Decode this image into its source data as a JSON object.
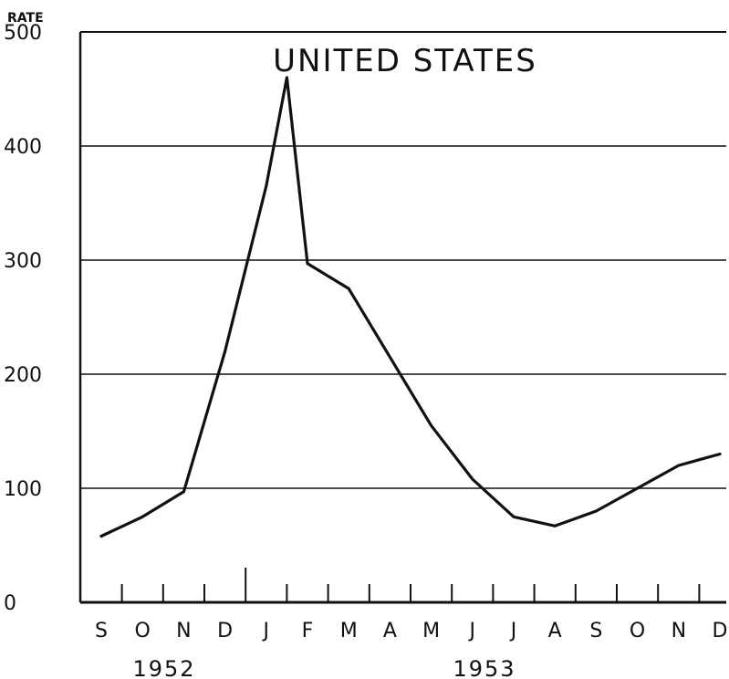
{
  "chart_data": {
    "type": "line",
    "title": "UNITED STATES",
    "ylabel": "RATE",
    "xlabel": "",
    "ylim": [
      0,
      500
    ],
    "yticks": [
      0,
      100,
      200,
      300,
      400,
      500
    ],
    "grid": true,
    "categories": [
      "S",
      "O",
      "N",
      "D",
      "J",
      "F",
      "M",
      "A",
      "M",
      "J",
      "J",
      "A",
      "S",
      "O",
      "N",
      "D"
    ],
    "years": [
      {
        "label": "1952",
        "first_index": 0,
        "last_index": 3
      },
      {
        "label": "1953",
        "first_index": 4,
        "last_index": 15
      }
    ],
    "x": [
      0,
      1,
      2,
      3,
      4,
      4.5,
      5,
      6,
      7,
      8,
      9,
      10,
      11,
      12,
      13,
      14,
      15
    ],
    "series": [
      {
        "values": [
          58,
          75,
          97,
          220,
          365,
          460,
          297,
          275,
          215,
          155,
          108,
          75,
          67,
          80,
          100,
          120,
          130
        ]
      }
    ]
  }
}
